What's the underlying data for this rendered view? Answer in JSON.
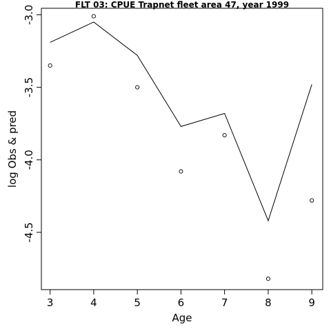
{
  "chart_data": {
    "type": "scatter",
    "title": "FLT 03: CPUE Trapnet fleet area 47, year 1999",
    "xlabel": "Age",
    "ylabel": "log Obs & pred",
    "x": [
      3,
      4,
      5,
      6,
      7,
      8,
      9
    ],
    "xlim": [
      2.8,
      9.25
    ],
    "ylim": [
      -4.895,
      -2.955
    ],
    "xticks": [
      "3",
      "4",
      "5",
      "6",
      "7",
      "8",
      "9"
    ],
    "yticks": [
      "-3.0",
      "-3.5",
      "-4.0",
      "-4.5"
    ],
    "series": [
      {
        "kind": "points",
        "values": [
          -3.35,
          -3.01,
          -3.5,
          -4.08,
          -3.83,
          -4.82,
          -4.28
        ]
      },
      {
        "kind": "line",
        "values": [
          -3.19,
          -3.05,
          -3.28,
          -3.77,
          -3.68,
          -4.42,
          -3.48
        ]
      }
    ]
  }
}
